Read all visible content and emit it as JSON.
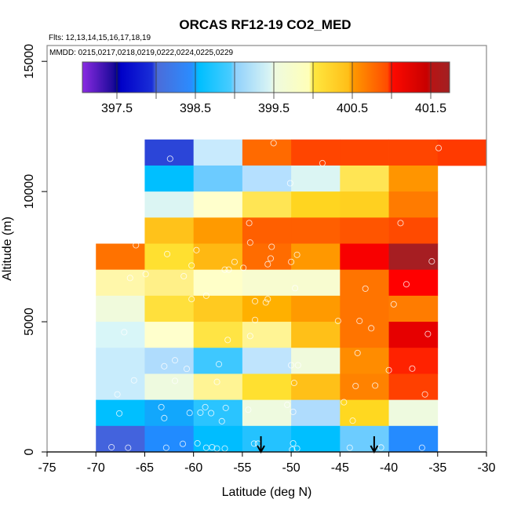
{
  "chart_data": {
    "type": "heatmap",
    "title": "ORCAS RF12-19 CO2_MED",
    "flights_label": "Flts: 12,13,14,15,16,17,18,19",
    "dates_label": "MMDD: 0215,0217,0218,0219,0222,0224,0225,0229",
    "xlabel": "Latitude (deg N)",
    "ylabel": "Altitude (m)",
    "xlim": [
      -75,
      -30
    ],
    "ylim": [
      0,
      15000
    ],
    "x_ticks": [
      -75,
      -70,
      -65,
      -60,
      -55,
      -50,
      -45,
      -40,
      -35,
      -30
    ],
    "y_ticks": [
      0,
      5000,
      10000,
      15000
    ],
    "bin_width_lat": 5,
    "bin_height_alt": 1000,
    "colorbar": {
      "range": [
        397.06,
        401.74
      ],
      "tick_values": [
        397.5,
        398.0,
        398.5,
        399.0,
        399.5,
        400.0,
        400.5,
        401.0,
        401.5
      ],
      "tick_labels": [
        "397.5",
        "398.5",
        "399.5",
        "400.5",
        "401.5"
      ],
      "labeled_values": [
        397.5,
        398.5,
        399.5,
        400.5,
        401.5
      ],
      "stops": [
        {
          "v": 397.06,
          "c": "#8a2be2"
        },
        {
          "v": 397.45,
          "c": "#1e0a9a"
        },
        {
          "v": 397.5,
          "c": "#00008b"
        },
        {
          "v": 397.55,
          "c": "#0000c8"
        },
        {
          "v": 397.95,
          "c": "#1a2fd8"
        },
        {
          "v": 398.0,
          "c": "#4c6bd8"
        },
        {
          "v": 398.45,
          "c": "#2a8cff"
        },
        {
          "v": 398.5,
          "c": "#12a6fc"
        },
        {
          "v": 398.55,
          "c": "#00bfff"
        },
        {
          "v": 398.95,
          "c": "#48ccff"
        },
        {
          "v": 399.0,
          "c": "#8ed0fc"
        },
        {
          "v": 399.45,
          "c": "#d9f4f4"
        },
        {
          "v": 399.5,
          "c": "#eefae0"
        },
        {
          "v": 399.95,
          "c": "#ffffb8"
        },
        {
          "v": 400.0,
          "c": "#ffe840"
        },
        {
          "v": 400.45,
          "c": "#ffbf18"
        },
        {
          "v": 400.5,
          "c": "#ff9a00"
        },
        {
          "v": 400.95,
          "c": "#ff4c00"
        },
        {
          "v": 401.0,
          "c": "#ff0a00"
        },
        {
          "v": 401.45,
          "c": "#c80000"
        },
        {
          "v": 401.5,
          "c": "#b81414"
        },
        {
          "v": 401.74,
          "c": "#a22022"
        }
      ]
    },
    "cells": [
      {
        "lat": -65,
        "alt": 11000,
        "value": 398.05,
        "color": "#2b45d8"
      },
      {
        "lat": -60,
        "alt": 11000,
        "value": 399.2,
        "color": "#c8eafd"
      },
      {
        "lat": -55,
        "alt": 11000,
        "value": 400.75,
        "color": "#ff6a00"
      },
      {
        "lat": -50,
        "alt": 11000,
        "value": 400.9,
        "color": "#ff4500"
      },
      {
        "lat": -45,
        "alt": 11000,
        "value": 400.9,
        "color": "#ff4500"
      },
      {
        "lat": -40,
        "alt": 11000,
        "value": 400.9,
        "color": "#ff4500"
      },
      {
        "lat": -35,
        "alt": 11000,
        "value": 400.95,
        "color": "#ff3a00"
      },
      {
        "lat": -65,
        "alt": 10000,
        "value": 398.6,
        "color": "#00bfff"
      },
      {
        "lat": -60,
        "alt": 10000,
        "value": 398.95,
        "color": "#6ccbff"
      },
      {
        "lat": -55,
        "alt": 10000,
        "value": 399.15,
        "color": "#b5e0ff"
      },
      {
        "lat": -50,
        "alt": 10000,
        "value": 399.45,
        "color": "#dbf5f3"
      },
      {
        "lat": -45,
        "alt": 10000,
        "value": 400.1,
        "color": "#ffe554"
      },
      {
        "lat": -40,
        "alt": 10000,
        "value": 400.5,
        "color": "#ff9500"
      },
      {
        "lat": -65,
        "alt": 9000,
        "value": 399.45,
        "color": "#dbf5f3"
      },
      {
        "lat": -60,
        "alt": 9000,
        "value": 399.85,
        "color": "#ffffcc"
      },
      {
        "lat": -55,
        "alt": 9000,
        "value": 400.1,
        "color": "#ffe554"
      },
      {
        "lat": -50,
        "alt": 9000,
        "value": 400.2,
        "color": "#ffd520"
      },
      {
        "lat": -45,
        "alt": 9000,
        "value": 400.25,
        "color": "#ffd020"
      },
      {
        "lat": -40,
        "alt": 9000,
        "value": 400.7,
        "color": "#ff7b00"
      },
      {
        "lat": -65,
        "alt": 8000,
        "value": 400.3,
        "color": "#ffc21a"
      },
      {
        "lat": -60,
        "alt": 8000,
        "value": 400.5,
        "color": "#ff9a00"
      },
      {
        "lat": -55,
        "alt": 8000,
        "value": 400.8,
        "color": "#ff5f00"
      },
      {
        "lat": -50,
        "alt": 8000,
        "value": 400.8,
        "color": "#ff5f00"
      },
      {
        "lat": -45,
        "alt": 8000,
        "value": 400.85,
        "color": "#ff5500"
      },
      {
        "lat": -40,
        "alt": 8000,
        "value": 400.9,
        "color": "#ff4a00"
      },
      {
        "lat": -70,
        "alt": 7000,
        "value": 400.7,
        "color": "#ff7200"
      },
      {
        "lat": -65,
        "alt": 7000,
        "value": 400.15,
        "color": "#ffe030"
      },
      {
        "lat": -60,
        "alt": 7000,
        "value": 400.35,
        "color": "#ffb812"
      },
      {
        "lat": -55,
        "alt": 7000,
        "value": 400.75,
        "color": "#ff6c00"
      },
      {
        "lat": -50,
        "alt": 7000,
        "value": 400.5,
        "color": "#ff9800"
      },
      {
        "lat": -45,
        "alt": 7000,
        "value": 401.05,
        "color": "#f80000"
      },
      {
        "lat": -40,
        "alt": 7000,
        "value": 401.65,
        "color": "#a61e22"
      },
      {
        "lat": -70,
        "alt": 6000,
        "value": 399.9,
        "color": "#fff7aa"
      },
      {
        "lat": -65,
        "alt": 6000,
        "value": 400.05,
        "color": "#fff088"
      },
      {
        "lat": -60,
        "alt": 6000,
        "value": 399.8,
        "color": "#ffffc8"
      },
      {
        "lat": -55,
        "alt": 6000,
        "value": 399.7,
        "color": "#f8fcd0"
      },
      {
        "lat": -50,
        "alt": 6000,
        "value": 399.7,
        "color": "#f8fcd0"
      },
      {
        "lat": -45,
        "alt": 6000,
        "value": 400.7,
        "color": "#ff7400"
      },
      {
        "lat": -40,
        "alt": 6000,
        "value": 401.0,
        "color": "#ff0000"
      },
      {
        "lat": -70,
        "alt": 5000,
        "value": 399.55,
        "color": "#f0fadc"
      },
      {
        "lat": -65,
        "alt": 5000,
        "value": 400.1,
        "color": "#ffe03c"
      },
      {
        "lat": -60,
        "alt": 5000,
        "value": 400.25,
        "color": "#ffca20"
      },
      {
        "lat": -55,
        "alt": 5000,
        "value": 400.4,
        "color": "#ffb000"
      },
      {
        "lat": -50,
        "alt": 5000,
        "value": 400.5,
        "color": "#ff9a00"
      },
      {
        "lat": -45,
        "alt": 5000,
        "value": 400.7,
        "color": "#ff7400"
      },
      {
        "lat": -40,
        "alt": 5000,
        "value": 400.65,
        "color": "#ff7c00"
      },
      {
        "lat": -70,
        "alt": 4000,
        "value": 399.4,
        "color": "#d8f6f8"
      },
      {
        "lat": -65,
        "alt": 4000,
        "value": 399.85,
        "color": "#ffffcc"
      },
      {
        "lat": -60,
        "alt": 4000,
        "value": 400.1,
        "color": "#ffe444"
      },
      {
        "lat": -55,
        "alt": 4000,
        "value": 399.95,
        "color": "#fff494"
      },
      {
        "lat": -50,
        "alt": 4000,
        "value": 400.3,
        "color": "#ffc018"
      },
      {
        "lat": -45,
        "alt": 4000,
        "value": 400.7,
        "color": "#ff7400"
      },
      {
        "lat": -40,
        "alt": 4000,
        "value": 401.3,
        "color": "#e60000"
      },
      {
        "lat": -70,
        "alt": 3000,
        "value": 399.2,
        "color": "#c8ecfc"
      },
      {
        "lat": -65,
        "alt": 3000,
        "value": 399.1,
        "color": "#afdcfd"
      },
      {
        "lat": -60,
        "alt": 3000,
        "value": 398.75,
        "color": "#3ec8ff"
      },
      {
        "lat": -55,
        "alt": 3000,
        "value": 399.15,
        "color": "#bfe4fd"
      },
      {
        "lat": -50,
        "alt": 3000,
        "value": 399.55,
        "color": "#f0fadc"
      },
      {
        "lat": -45,
        "alt": 3000,
        "value": 400.6,
        "color": "#ff8c00"
      },
      {
        "lat": -40,
        "alt": 3000,
        "value": 401.05,
        "color": "#ff2200"
      },
      {
        "lat": -70,
        "alt": 2000,
        "value": 399.2,
        "color": "#c8ecfc"
      },
      {
        "lat": -65,
        "alt": 2000,
        "value": 399.55,
        "color": "#eefadf"
      },
      {
        "lat": -60,
        "alt": 2000,
        "value": 399.95,
        "color": "#fff494"
      },
      {
        "lat": -55,
        "alt": 2000,
        "value": 400.15,
        "color": "#ffe030"
      },
      {
        "lat": -50,
        "alt": 2000,
        "value": 400.3,
        "color": "#ffc018"
      },
      {
        "lat": -45,
        "alt": 2000,
        "value": 400.65,
        "color": "#ff8200"
      },
      {
        "lat": -40,
        "alt": 2000,
        "value": 400.9,
        "color": "#ff4000"
      },
      {
        "lat": -70,
        "alt": 1000,
        "value": 398.6,
        "color": "#00bfff"
      },
      {
        "lat": -65,
        "alt": 1000,
        "value": 398.5,
        "color": "#12a7fc"
      },
      {
        "lat": -60,
        "alt": 1000,
        "value": 398.7,
        "color": "#2ac4ff"
      },
      {
        "lat": -55,
        "alt": 1000,
        "value": 399.55,
        "color": "#eefadf"
      },
      {
        "lat": -50,
        "alt": 1000,
        "value": 399.1,
        "color": "#afdcfd"
      },
      {
        "lat": -45,
        "alt": 1000,
        "value": 400.2,
        "color": "#ffd820"
      },
      {
        "lat": -40,
        "alt": 1000,
        "value": 399.55,
        "color": "#eefadf"
      },
      {
        "lat": -70,
        "alt": 0,
        "value": 398.0,
        "color": "#4363dd"
      },
      {
        "lat": -65,
        "alt": 0,
        "value": 398.45,
        "color": "#218bff"
      },
      {
        "lat": -60,
        "alt": 0,
        "value": 398.6,
        "color": "#00bdff"
      },
      {
        "lat": -55,
        "alt": 0,
        "value": 398.65,
        "color": "#24c2ff"
      },
      {
        "lat": -50,
        "alt": 0,
        "value": 398.6,
        "color": "#00bfff"
      },
      {
        "lat": -45,
        "alt": 0,
        "value": 398.95,
        "color": "#6cccff"
      },
      {
        "lat": -40,
        "alt": 0,
        "value": 398.45,
        "color": "#258bff"
      }
    ],
    "samples": [
      [
        -62.4,
        11260
      ],
      [
        -51.8,
        11860
      ],
      [
        -46.8,
        11090
      ],
      [
        -34.9,
        11670
      ],
      [
        -50.1,
        10320
      ],
      [
        -54.3,
        8790
      ],
      [
        -38.8,
        8790
      ],
      [
        -54.2,
        8040
      ],
      [
        -65.9,
        7940
      ],
      [
        -62.7,
        7600
      ],
      [
        -59.7,
        7750
      ],
      [
        -52.0,
        7880
      ],
      [
        -55.8,
        7300
      ],
      [
        -60.2,
        7160
      ],
      [
        -52.1,
        7430
      ],
      [
        -52.4,
        7210
      ],
      [
        -49.4,
        7570
      ],
      [
        -50.0,
        7300
      ],
      [
        -54.9,
        7070
      ],
      [
        -56.8,
        7000
      ],
      [
        -56.4,
        7000
      ],
      [
        -35.6,
        7320
      ],
      [
        -66.5,
        6680
      ],
      [
        -64.9,
        6830
      ],
      [
        -61.0,
        6750
      ],
      [
        -49.6,
        6290
      ],
      [
        -42.4,
        6270
      ],
      [
        -38.2,
        6440
      ],
      [
        -60.2,
        5870
      ],
      [
        -58.7,
        6000
      ],
      [
        -53.7,
        5790
      ],
      [
        -52.4,
        5870
      ],
      [
        -52.6,
        5740
      ],
      [
        -39.5,
        5670
      ],
      [
        -53.7,
        5070
      ],
      [
        -45.2,
        5030
      ],
      [
        -43.0,
        5030
      ],
      [
        -41.8,
        4750
      ],
      [
        -67.1,
        4600
      ],
      [
        -56.5,
        4300
      ],
      [
        -54.2,
        4450
      ],
      [
        -36.0,
        4530
      ],
      [
        -61.9,
        3520
      ],
      [
        -63.0,
        3290
      ],
      [
        -60.7,
        3190
      ],
      [
        -57.4,
        3370
      ],
      [
        -50.0,
        3330
      ],
      [
        -49.3,
        3330
      ],
      [
        -43.2,
        3800
      ],
      [
        -40.0,
        3140
      ],
      [
        -37.6,
        3200
      ],
      [
        -66.1,
        2750
      ],
      [
        -67.8,
        2210
      ],
      [
        -61.9,
        2730
      ],
      [
        -57.6,
        2690
      ],
      [
        -49.7,
        2650
      ],
      [
        -43.4,
        2530
      ],
      [
        -41.4,
        2550
      ],
      [
        -36.3,
        2210
      ],
      [
        -44.6,
        1910
      ],
      [
        -67.6,
        1480
      ],
      [
        -63.3,
        1720
      ],
      [
        -63.0,
        1300
      ],
      [
        -60.4,
        1500
      ],
      [
        -59.3,
        1510
      ],
      [
        -58.8,
        1720
      ],
      [
        -58.2,
        1490
      ],
      [
        -56.7,
        1690
      ],
      [
        -57.1,
        1180
      ],
      [
        -54.4,
        1620
      ],
      [
        -50.4,
        1810
      ],
      [
        -49.8,
        1540
      ],
      [
        -43.7,
        1200
      ],
      [
        -68.4,
        180
      ],
      [
        -66.7,
        160
      ],
      [
        -62.8,
        160
      ],
      [
        -61.1,
        310
      ],
      [
        -59.6,
        330
      ],
      [
        -58.7,
        160
      ],
      [
        -58.1,
        180
      ],
      [
        -57.6,
        130
      ],
      [
        -56.8,
        130
      ],
      [
        -53.8,
        320
      ],
      [
        -53.4,
        320
      ],
      [
        -49.8,
        330
      ],
      [
        -49.9,
        90
      ],
      [
        -49.4,
        130
      ],
      [
        -44.0,
        160
      ],
      [
        -40.8,
        170
      ],
      [
        -36.6,
        160
      ]
    ],
    "markers": [
      {
        "type": "down-arrow",
        "lat": -53.1
      },
      {
        "type": "down-arrow",
        "lat": -41.5
      }
    ],
    "grid": false,
    "legend": "colorbar-top-inside"
  }
}
